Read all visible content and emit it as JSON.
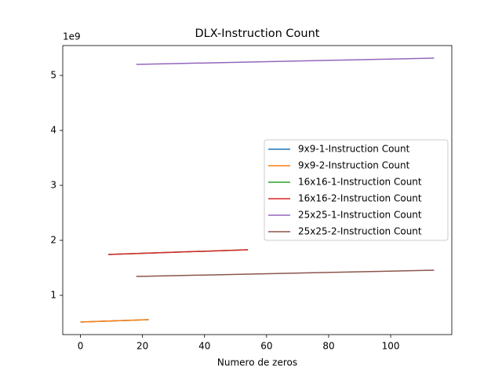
{
  "chart_data": {
    "type": "line",
    "title": "DLX-Instruction Count",
    "x_label": "Numero de zeros",
    "y_offset_label": "1e9",
    "series": [
      {
        "name": "9x9-1-Instruction Count",
        "color": "#1f77b4",
        "x": [
          0,
          22
        ],
        "values": [
          0.515,
          0.557
        ]
      },
      {
        "name": "9x9-2-Instruction Count",
        "color": "#ff7f0e",
        "x": [
          0,
          22
        ],
        "values": [
          0.515,
          0.557
        ]
      },
      {
        "name": "16x16-1-Instruction Count",
        "color": "#2ca02c",
        "x": [
          9,
          54
        ],
        "values": [
          1.743,
          1.829
        ]
      },
      {
        "name": "16x16-2-Instruction Count",
        "color": "#d62728",
        "x": [
          9,
          54
        ],
        "values": [
          1.743,
          1.829
        ]
      },
      {
        "name": "25x25-1-Instruction Count",
        "color": "#9467bd",
        "x": [
          18,
          114
        ],
        "values": [
          5.2,
          5.314
        ]
      },
      {
        "name": "25x25-2-Instruction Count",
        "color": "#8c564b",
        "x": [
          18,
          114
        ],
        "values": [
          1.343,
          1.457
        ]
      }
    ],
    "xlim": [
      -5.7,
      119.7
    ],
    "xticks": [
      0,
      20,
      40,
      60,
      80,
      100
    ],
    "ylim": [
      0.286,
      5.543
    ],
    "yticks": [
      1,
      2,
      3,
      4,
      5
    ],
    "legend": "center right"
  }
}
